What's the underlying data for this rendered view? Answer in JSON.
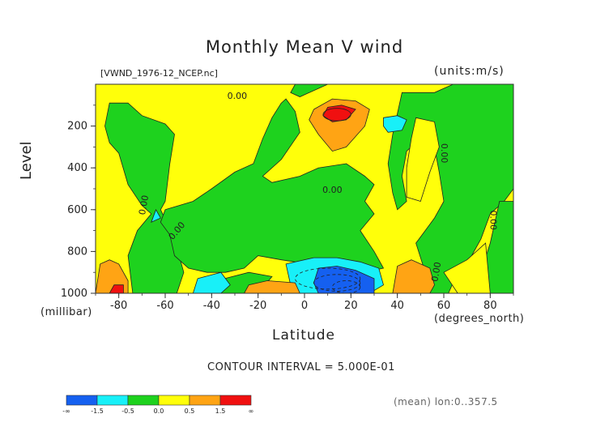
{
  "title": "Monthly Mean V wind",
  "file_label": "[VWND_1976-12_NCEP.nc]",
  "units_label": "(units:m/s)",
  "contour_interval": "CONTOUR INTERVAL = 5.000E-01",
  "footer_note": "(mean) lon:0..357.5",
  "colors": {
    "lt_-1.5": "#1560f0",
    "-1.5_-0.5": "#18f0f8",
    "-0.5_0.0": "#1ed21e",
    "0.0_0.5": "#ffff0a",
    "0.5_1.5": "#ffa414",
    "gt_1.5": "#f01010"
  },
  "chart_data": {
    "type": "contour",
    "title": "Monthly Mean V wind",
    "xlabel": "Latitude",
    "xunit": "(degrees_north)",
    "ylabel": "Level",
    "yunit": "(millibar)",
    "xlim": [
      -90,
      90
    ],
    "ylim": [
      1000,
      0
    ],
    "x_ticks": [
      "-80",
      "-60",
      "-40",
      "-20",
      "0",
      "20",
      "40",
      "60",
      "80"
    ],
    "y_ticks": [
      "200",
      "400",
      "600",
      "800",
      "1000"
    ],
    "contour_labels": [
      "0.00",
      "0.00",
      "0.00",
      "0.00",
      "0.00",
      "0.00",
      "0.00"
    ],
    "levels": [
      -1.5,
      -0.5,
      0.0,
      0.5,
      1.5
    ],
    "colorbar_labels": [
      "-∞",
      "-1.5",
      "-0.5",
      "0.0",
      "0.5",
      "1.5",
      "∞"
    ],
    "features": [
      {
        "region": "max",
        "lat": 12,
        "level": 150,
        "value": ">1.5"
      },
      {
        "region": "max",
        "lat": 46,
        "level": 960,
        "value": "0.5 to 1.5"
      },
      {
        "region": "max",
        "lat": -12,
        "level": 990,
        "value": "0.5 to 1.5"
      },
      {
        "region": "max",
        "lat": -80,
        "level": 970,
        "value": ">1.5"
      },
      {
        "region": "min",
        "lat": 18,
        "level": 960,
        "value": "<-1.5"
      },
      {
        "region": "min",
        "lat": 40,
        "level": 190,
        "value": "-1.5 to -0.5"
      },
      {
        "region": "min",
        "lat": -40,
        "level": 980,
        "value": "-1.5 to -0.5"
      }
    ]
  }
}
